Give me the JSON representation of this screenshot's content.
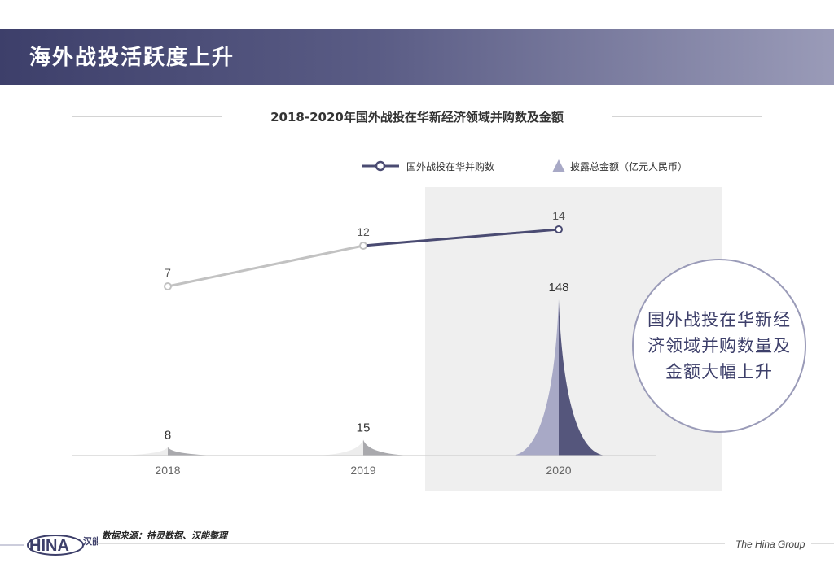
{
  "header": {
    "title": "海外战投活跃度上升"
  },
  "chart_data": {
    "type": "line+area",
    "title": "2018-2020年国外战投在华新经济领域并购数及金额",
    "categories": [
      "2018",
      "2019",
      "2020"
    ],
    "series": [
      {
        "name": "国外战投在华并购数",
        "type": "line",
        "values": [
          7,
          12,
          14
        ]
      },
      {
        "name": "披露总金额（亿元人民币）",
        "type": "peak",
        "values": [
          8,
          15,
          148
        ]
      }
    ],
    "highlight_category": "2020",
    "colors": {
      "line_old": "#c2c2c2",
      "line_new": "#4a4b72",
      "peak_left_old": "#ededed",
      "peak_right_old": "#a9a9ad",
      "peak_left_new": "#a8a9c6",
      "peak_right_new": "#55567c",
      "highlight_bg": "#efefef"
    }
  },
  "callout": {
    "text": "国外战投在华新经济领域并购数量及金额大幅上升"
  },
  "footer": {
    "source": "数据来源：持灵数据、汉能整理",
    "brand": "The Hina Group",
    "logo_text": "HINA",
    "logo_cn": "汉能"
  }
}
